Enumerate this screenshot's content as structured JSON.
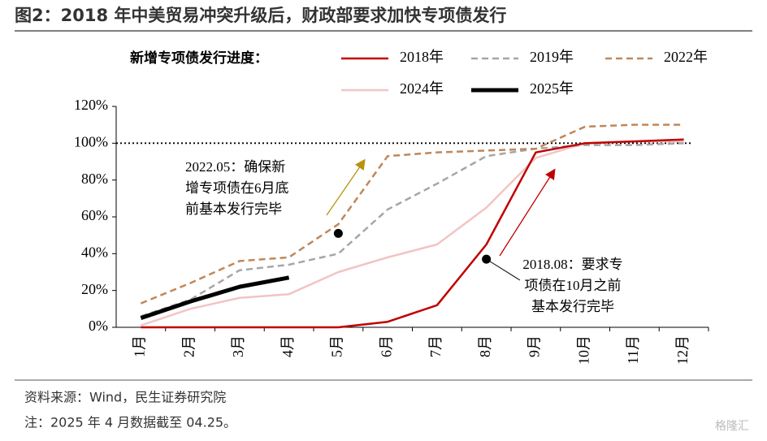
{
  "chart_data": {
    "type": "line",
    "title": "图2：2018 年中美贸易冲突升级后，财政部要求加快专项债发行",
    "legend_title": "新增专项债发行进度：",
    "categories": [
      "1月",
      "2月",
      "3月",
      "4月",
      "5月",
      "6月",
      "7月",
      "8月",
      "9月",
      "10月",
      "11月",
      "12月"
    ],
    "series": [
      {
        "name": "2018年",
        "color": "#c00000",
        "dash": false,
        "width": 2.5,
        "values": [
          0,
          0,
          0,
          0,
          0,
          3,
          12,
          45,
          95,
          100,
          101,
          102
        ]
      },
      {
        "name": "2019年",
        "color": "#a6a6a6",
        "dash": true,
        "width": 2.5,
        "values": [
          6,
          15,
          31,
          34,
          40,
          64,
          78,
          93,
          97,
          99,
          99,
          100
        ]
      },
      {
        "name": "2022年",
        "color": "#c0875a",
        "dash": true,
        "width": 2.5,
        "values": [
          13,
          24,
          36,
          38,
          56,
          93,
          95,
          96,
          97,
          109,
          110,
          110
        ]
      },
      {
        "name": "2024年",
        "color": "#f2c4c4",
        "dash": false,
        "width": 2.5,
        "values": [
          1,
          10,
          16,
          18,
          30,
          38,
          45,
          65,
          92,
          100,
          101,
          101
        ]
      },
      {
        "name": "2025年",
        "color": "#000000",
        "dash": false,
        "width": 5,
        "values": [
          5,
          14,
          22,
          27,
          null,
          null,
          null,
          null,
          null,
          null,
          null,
          null
        ]
      }
    ],
    "ylim": [
      0,
      120
    ],
    "yticks": [
      {
        "value": 0,
        "label": "0%"
      },
      {
        "value": 20,
        "label": "20%"
      },
      {
        "value": 40,
        "label": "40%"
      },
      {
        "value": 60,
        "label": "60%"
      },
      {
        "value": 80,
        "label": "80%"
      },
      {
        "value": 100,
        "label": "100%"
      },
      {
        "value": 120,
        "label": "120%"
      }
    ],
    "reference_line": 100,
    "annotations": [
      {
        "x": "5月",
        "value": 51,
        "lines": [
          "2022.05：确保新",
          "增专项债在6月底",
          "前基本发行完毕"
        ]
      },
      {
        "x": "8月",
        "value": 37,
        "lines": [
          "2018.08：要求专",
          "项债在10月之前",
          "基本发行完毕"
        ]
      }
    ],
    "source": "资料来源：Wind，民生证券研究院",
    "note": "注：2025 年 4 月数据截至 04.25。",
    "watermark": "格隆汇"
  }
}
